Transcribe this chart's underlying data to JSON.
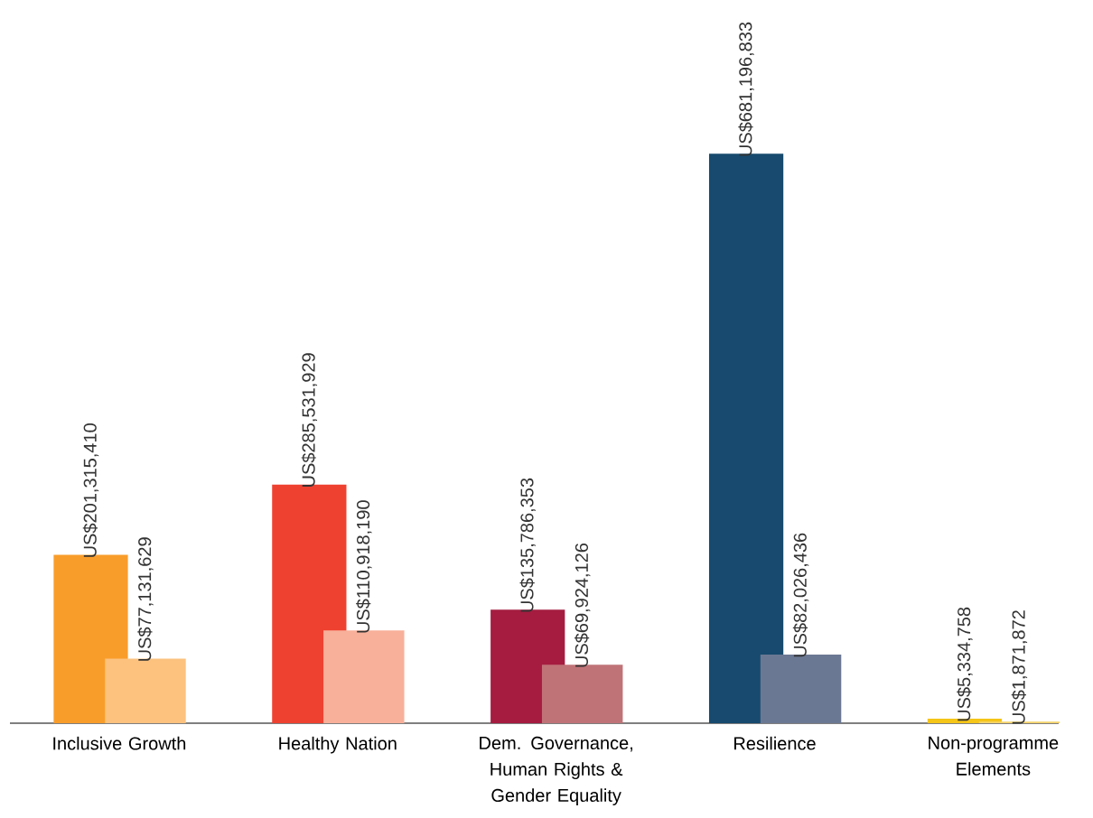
{
  "chart_data": {
    "type": "bar",
    "categories": [
      "Inclusive Growth",
      "Healthy Nation",
      "Dem. Governance, Human Rights & Gender Equality",
      "Resilience",
      "Non-programme Elements"
    ],
    "series": [
      {
        "colors": [
          "#f99d2a",
          "#ef4130",
          "#a51c40",
          "#174a6e",
          "#f5c518"
        ],
        "values": [
          201315410,
          285531929,
          135786353,
          681196833,
          5334758
        ],
        "value_labels": [
          "US$201,315,410",
          "US$285,531,929",
          "US$135,786,353",
          "US$681,196,833",
          "US$5,334,758"
        ]
      },
      {
        "colors": [
          "#fcc27e",
          "#f8b09a",
          "#c07377",
          "#6b7893",
          "#f5d36a"
        ],
        "values": [
          77131629,
          110918190,
          69924126,
          82026436,
          1871872
        ],
        "value_labels": [
          "US$77,131,629",
          "US$110,918,190",
          "US$69,924,126",
          "US$82,026,436",
          "US$1,871,872"
        ]
      }
    ]
  }
}
